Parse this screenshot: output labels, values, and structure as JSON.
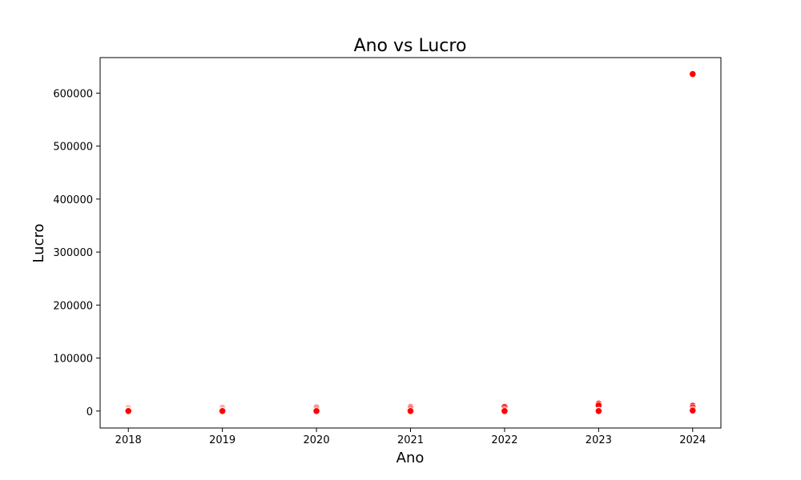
{
  "chart_data": {
    "type": "scatter",
    "title": "Ano vs Lucro",
    "xlabel": "Ano",
    "ylabel": "Lucro",
    "xlim": [
      2017.7,
      2024.3
    ],
    "ylim": [
      -32000,
      667000
    ],
    "x_ticks": [
      2018,
      2019,
      2020,
      2021,
      2022,
      2023,
      2024
    ],
    "x_tick_labels": [
      "2018",
      "2019",
      "2020",
      "2021",
      "2022",
      "2023",
      "2024"
    ],
    "y_ticks": [
      0,
      100000,
      200000,
      300000,
      400000,
      500000,
      600000
    ],
    "y_tick_labels": [
      "0",
      "100000",
      "200000",
      "300000",
      "400000",
      "500000",
      "600000"
    ],
    "grid": false,
    "series": [
      {
        "color": "#ff0000",
        "points": [
          {
            "x": 2018,
            "y": 6000,
            "alpha": 0.35
          },
          {
            "x": 2018,
            "y": 3000,
            "alpha": 0.5
          },
          {
            "x": 2018,
            "y": 1000,
            "alpha": 1
          },
          {
            "x": 2018,
            "y": 0,
            "alpha": 1
          },
          {
            "x": 2019,
            "y": 6000,
            "alpha": 0.5
          },
          {
            "x": 2019,
            "y": 3000,
            "alpha": 0.7
          },
          {
            "x": 2019,
            "y": 1000,
            "alpha": 1
          },
          {
            "x": 2019,
            "y": 0,
            "alpha": 1
          },
          {
            "x": 2020,
            "y": 7000,
            "alpha": 0.5
          },
          {
            "x": 2020,
            "y": 3000,
            "alpha": 0.7
          },
          {
            "x": 2020,
            "y": 500,
            "alpha": 1
          },
          {
            "x": 2020,
            "y": 0,
            "alpha": 1
          },
          {
            "x": 2021,
            "y": 8000,
            "alpha": 0.6
          },
          {
            "x": 2021,
            "y": 5000,
            "alpha": 0.8
          },
          {
            "x": 2021,
            "y": 2000,
            "alpha": 1
          },
          {
            "x": 2021,
            "y": 0,
            "alpha": 1
          },
          {
            "x": 2022,
            "y": 8000,
            "alpha": 0.8
          },
          {
            "x": 2022,
            "y": 2000,
            "alpha": 1
          },
          {
            "x": 2022,
            "y": 0,
            "alpha": 1
          },
          {
            "x": 2023,
            "y": 14000,
            "alpha": 1
          },
          {
            "x": 2023,
            "y": 11000,
            "alpha": 1
          },
          {
            "x": 2023,
            "y": 1000,
            "alpha": 1
          },
          {
            "x": 2023,
            "y": 0,
            "alpha": 1
          },
          {
            "x": 2024,
            "y": 636000,
            "alpha": 1
          },
          {
            "x": 2024,
            "y": 10000,
            "alpha": 1
          },
          {
            "x": 2024,
            "y": 7000,
            "alpha": 1
          },
          {
            "x": 2024,
            "y": 3000,
            "alpha": 1
          },
          {
            "x": 2024,
            "y": 1000,
            "alpha": 1
          }
        ]
      }
    ]
  }
}
